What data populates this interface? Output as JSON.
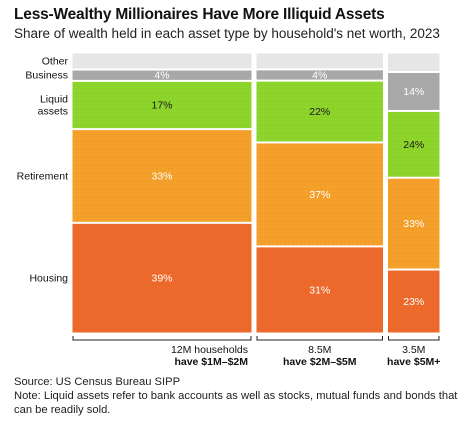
{
  "title": "Less-Wealthy Millionaires Have More Illiquid Assets",
  "subtitle": "Share of wealth held in each asset type by household's net worth, 2023",
  "source": "Source: US Census Bureau SIPP",
  "note": "Note: Liquid assets refer to bank accounts as well as stocks, mutual funds and bonds that can be readily sold.",
  "colors": {
    "Other": "#e6e6e6",
    "Business": "#a8a8a8",
    "Liquid assets": "#8dd42b",
    "Retirement": "#f5a02a",
    "Housing": "#ee6a2c"
  },
  "chart_data": {
    "type": "mosaic",
    "title": "Less-Wealthy Millionaires Have More Illiquid Assets",
    "subtitle": "Share of wealth held in each asset type by household's net worth, 2023",
    "row_labels": [
      "Other",
      "Business",
      "Liquid\nassets",
      "Retirement",
      "Housing"
    ],
    "categories": [
      {
        "count": "12M households",
        "group": "have $1M–$2M",
        "households_millions": 12
      },
      {
        "count": "8.5M",
        "group": "have $2M–$5M",
        "households_millions": 8.5
      },
      {
        "count": "3.5M",
        "group": "have $5M+",
        "households_millions": 3.5
      }
    ],
    "series": [
      {
        "name": "Other",
        "values": [
          6,
          6,
          7
        ],
        "labels": [
          "",
          "",
          ""
        ]
      },
      {
        "name": "Business",
        "values": [
          4,
          4,
          14
        ],
        "labels": [
          "4%",
          "4%",
          "14%"
        ]
      },
      {
        "name": "Liquid assets",
        "values": [
          17,
          22,
          24
        ],
        "labels": [
          "17%",
          "22%",
          "24%"
        ]
      },
      {
        "name": "Retirement",
        "values": [
          33,
          37,
          33
        ],
        "labels": [
          "33%",
          "37%",
          "33%"
        ]
      },
      {
        "name": "Housing",
        "values": [
          39,
          31,
          23
        ],
        "labels": [
          "39%",
          "31%",
          "23%"
        ]
      }
    ]
  }
}
